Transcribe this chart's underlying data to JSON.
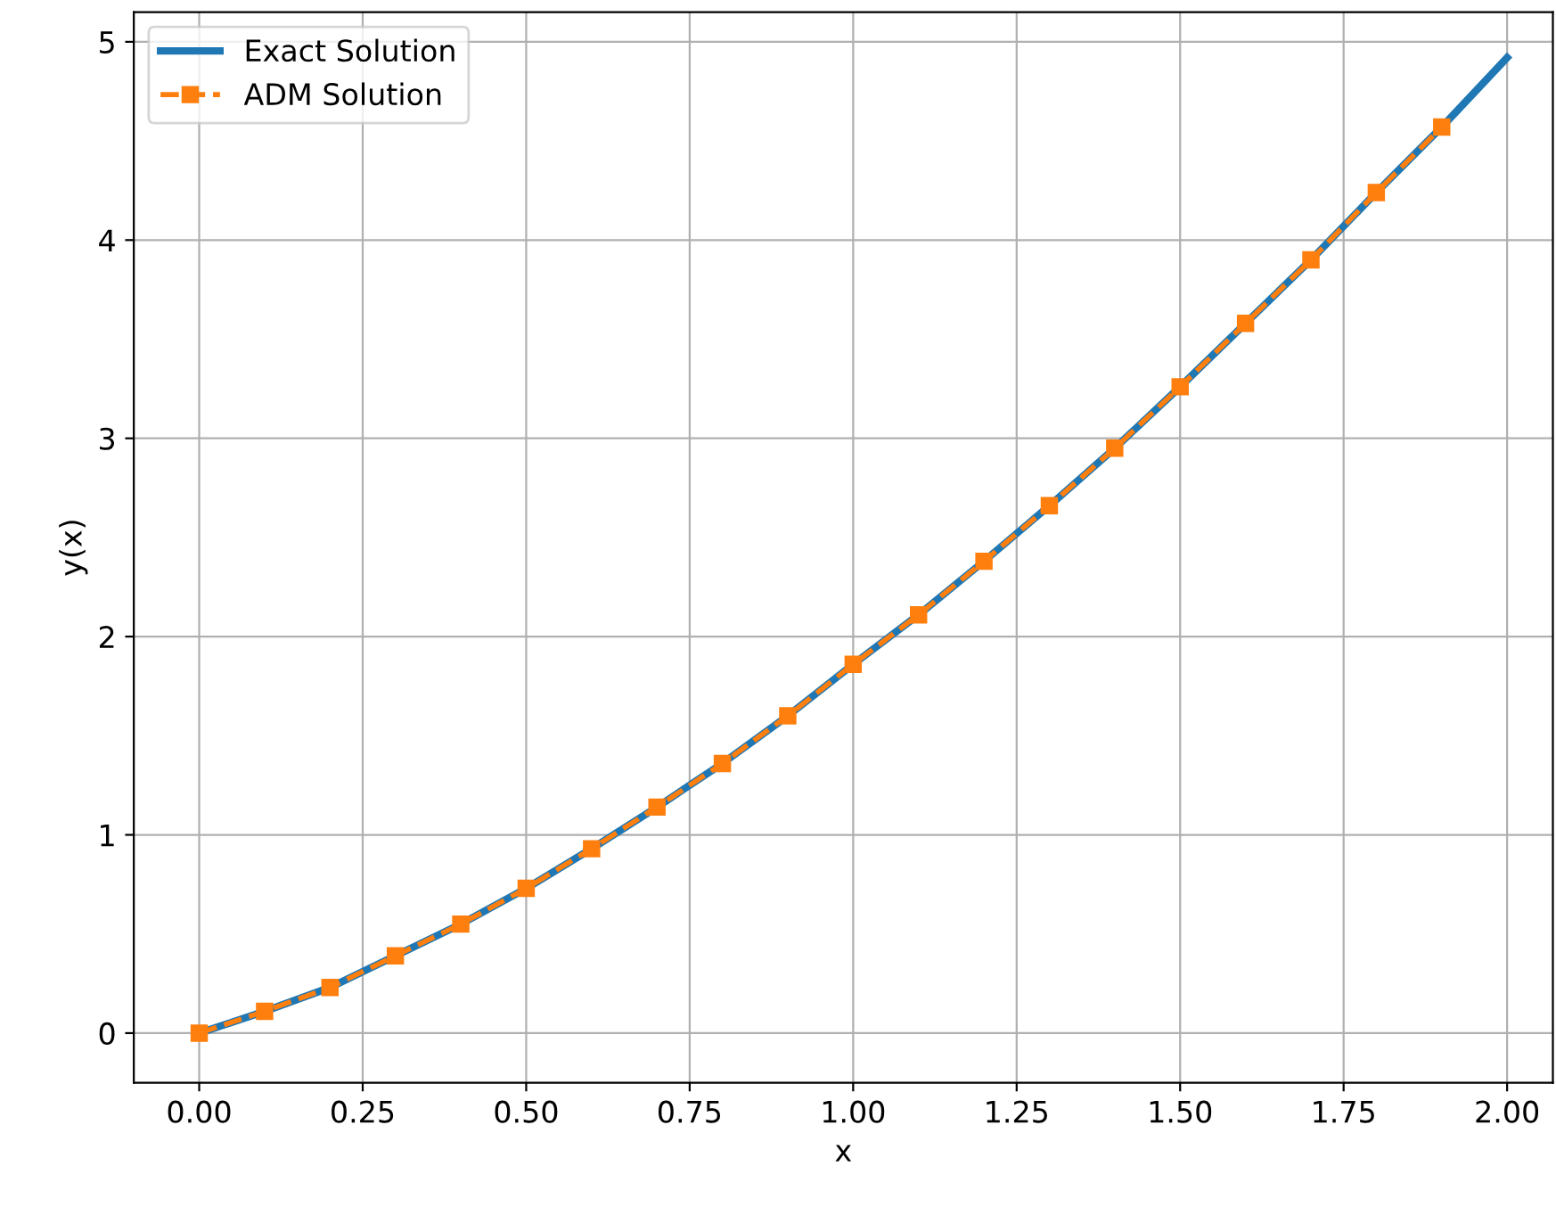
{
  "chart_data": {
    "type": "line",
    "xlabel": "x",
    "ylabel": "y(x)",
    "x": [
      0,
      0.1,
      0.2,
      0.3,
      0.4,
      0.5,
      0.6,
      0.7,
      0.8,
      0.9,
      1.0,
      1.1,
      1.2,
      1.3,
      1.4,
      1.5,
      1.6,
      1.7,
      1.8,
      1.9,
      2.0
    ],
    "series": [
      {
        "name": "Exact Solution",
        "color": "#1f77b4",
        "line_style": "solid",
        "marker": "none",
        "values": [
          0,
          0.11,
          0.23,
          0.39,
          0.55,
          0.73,
          0.93,
          1.14,
          1.36,
          1.6,
          1.86,
          2.11,
          2.38,
          2.66,
          2.95,
          3.26,
          3.58,
          3.9,
          4.24,
          4.57,
          4.92
        ]
      },
      {
        "name": "ADM Solution",
        "color": "#ff7f0e",
        "line_style": "dashed",
        "marker": "square",
        "x": [
          0,
          0.1,
          0.2,
          0.3,
          0.4,
          0.5,
          0.6,
          0.7,
          0.8,
          0.9,
          1.0,
          1.1,
          1.2,
          1.3,
          1.4,
          1.5,
          1.6,
          1.7,
          1.8,
          1.9
        ],
        "values": [
          0,
          0.11,
          0.23,
          0.39,
          0.55,
          0.73,
          0.93,
          1.14,
          1.36,
          1.6,
          1.86,
          2.11,
          2.38,
          2.66,
          2.95,
          3.26,
          3.58,
          3.9,
          4.24,
          4.57
        ]
      }
    ],
    "xlim": [
      -0.1,
      2.07
    ],
    "ylim": [
      -0.25,
      5.15
    ],
    "xticks": [
      {
        "value": 0,
        "label": "0.00"
      },
      {
        "value": 0.25,
        "label": "0.25"
      },
      {
        "value": 0.5,
        "label": "0.50"
      },
      {
        "value": 0.75,
        "label": "0.75"
      },
      {
        "value": 1,
        "label": "1.00"
      },
      {
        "value": 1.25,
        "label": "1.25"
      },
      {
        "value": 1.5,
        "label": "1.50"
      },
      {
        "value": 1.75,
        "label": "1.75"
      },
      {
        "value": 2,
        "label": "2.00"
      }
    ],
    "yticks": [
      0,
      1,
      2,
      3,
      4,
      5
    ],
    "grid": true,
    "legend": "top left"
  }
}
